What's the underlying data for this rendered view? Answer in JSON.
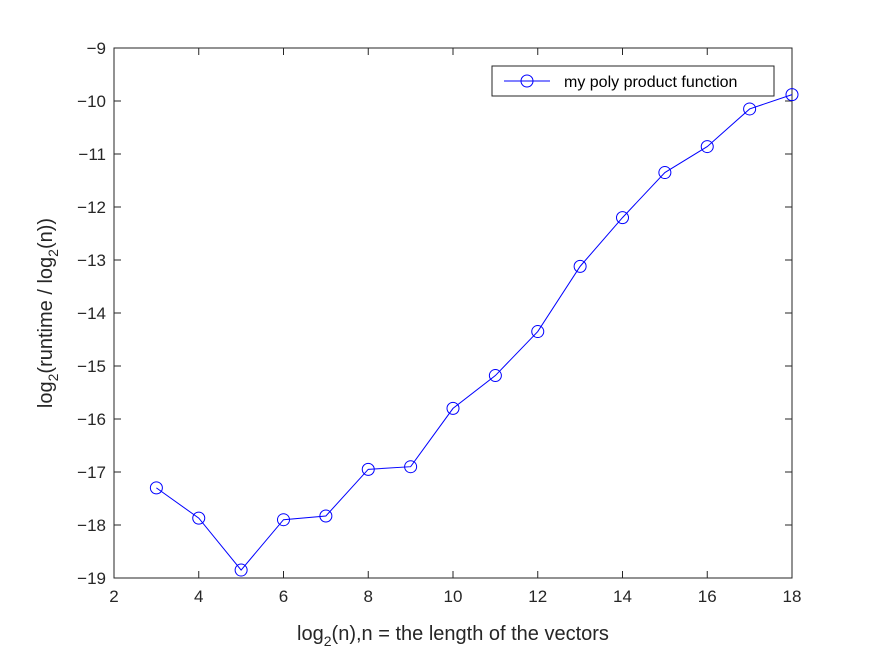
{
  "chart_data": {
    "type": "line",
    "xlabel": "log2(n),n = the length of the vectors",
    "xlabel_parts": {
      "pre": "log",
      "sub": "2",
      "post": "(n),n = the length of the vectors"
    },
    "ylabel": "log2(runtime / log2(n))",
    "ylabel_parts": {
      "pre": "log",
      "sub1": "2",
      "mid": "(runtime / log",
      "sub2": "2",
      "post": "(n))"
    },
    "xlim": [
      2,
      18
    ],
    "ylim": [
      -19,
      -9
    ],
    "x_ticks": [
      2,
      4,
      6,
      8,
      10,
      12,
      14,
      16,
      18
    ],
    "y_ticks": [
      -9,
      -10,
      -11,
      -12,
      -13,
      -14,
      -15,
      -16,
      -17,
      -18,
      -19
    ],
    "grid": false,
    "legend_position": "top-right",
    "series": [
      {
        "name": "my poly product function",
        "color": "#0000ff",
        "marker": "circle",
        "x": [
          3,
          4,
          5,
          6,
          7,
          8,
          9,
          10,
          11,
          12,
          13,
          14,
          15,
          16,
          17,
          18
        ],
        "y": [
          -17.3,
          -17.87,
          -18.85,
          -17.9,
          -17.83,
          -16.95,
          -16.9,
          -15.8,
          -15.18,
          -14.35,
          -13.12,
          -12.2,
          -11.35,
          -10.86,
          -10.15,
          -9.88
        ]
      }
    ]
  }
}
